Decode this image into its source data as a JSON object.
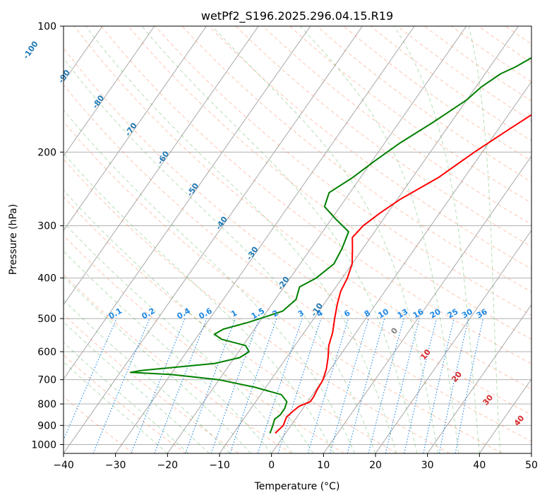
{
  "chart_data": {
    "type": "line",
    "title": "wetPf2_S196.2025.296.04.15.R19",
    "xlabel": "Temperature (°C)",
    "ylabel": "Pressure (hPa)",
    "xlim": [
      -40,
      50
    ],
    "ylim": [
      1050,
      100
    ],
    "y_scale": "log",
    "grid": true,
    "x_ticks": [
      -40,
      -30,
      -20,
      -10,
      0,
      10,
      20,
      30,
      40,
      50
    ],
    "y_ticks": [
      100,
      200,
      300,
      400,
      500,
      600,
      700,
      800,
      900,
      1000
    ],
    "isotherm_labels": [
      "-100",
      "-90",
      "-80",
      "-70",
      "-60",
      "-50",
      "-40",
      "-30",
      "-20",
      "-10"
    ],
    "mixing_ratio_labels": [
      "0.1",
      "0.2",
      "0.4",
      "0.6",
      "1",
      "1.5",
      "2",
      "3",
      "4",
      "6",
      "8",
      "10",
      "13",
      "16",
      "20",
      "25",
      "30",
      "36"
    ],
    "moist_adiabat_labels": [
      "0",
      "10",
      "20",
      "30",
      "40"
    ],
    "colors": {
      "temperature": "#ff0000",
      "dewpoint": "#008000",
      "isotherm_label": "#1f77b4",
      "mixing_ratio": "#1e88e5",
      "dry_adiabat": "#ff7f50",
      "moist_adiabat": "#2ca02c",
      "moist_label": "#d62728",
      "zero_label": "#808080"
    },
    "series": [
      {
        "name": "",
        "role": "temperature",
        "points": [
          {
            "p": 940,
            "t": -2.0
          },
          {
            "p": 900,
            "t": -1.5
          },
          {
            "p": 860,
            "t": -2.0
          },
          {
            "p": 830,
            "t": -1.5
          },
          {
            "p": 810,
            "t": -1.0
          },
          {
            "p": 790,
            "t": 0.5
          },
          {
            "p": 770,
            "t": 0.5
          },
          {
            "p": 740,
            "t": 0.2
          },
          {
            "p": 700,
            "t": 0.0
          },
          {
            "p": 660,
            "t": -0.8
          },
          {
            "p": 620,
            "t": -2.0
          },
          {
            "p": 580,
            "t": -3.5
          },
          {
            "p": 540,
            "t": -4.5
          },
          {
            "p": 500,
            "t": -6.0
          },
          {
            "p": 460,
            "t": -7.5
          },
          {
            "p": 430,
            "t": -8.5
          },
          {
            "p": 400,
            "t": -9.0
          },
          {
            "p": 370,
            "t": -10.0
          },
          {
            "p": 340,
            "t": -12.0
          },
          {
            "p": 320,
            "t": -13.5
          },
          {
            "p": 300,
            "t": -13.0
          },
          {
            "p": 280,
            "t": -11.5
          },
          {
            "p": 260,
            "t": -9.5
          },
          {
            "p": 230,
            "t": -5.0
          },
          {
            "p": 200,
            "t": -1.5
          },
          {
            "p": 180,
            "t": 1.5
          },
          {
            "p": 160,
            "t": 5.0
          },
          {
            "p": 145,
            "t": 9.0
          },
          {
            "p": 130,
            "t": 13.0
          },
          {
            "p": 120,
            "t": 14.5
          },
          {
            "p": 110,
            "t": 16.0
          },
          {
            "p": 100,
            "t": 19.5
          }
        ]
      },
      {
        "name": "",
        "role": "dewpoint",
        "points": [
          {
            "p": 940,
            "t": -3.0
          },
          {
            "p": 900,
            "t": -3.5
          },
          {
            "p": 870,
            "t": -4.0
          },
          {
            "p": 850,
            "t": -3.5
          },
          {
            "p": 820,
            "t": -3.5
          },
          {
            "p": 790,
            "t": -4.0
          },
          {
            "p": 760,
            "t": -6.0
          },
          {
            "p": 730,
            "t": -12.0
          },
          {
            "p": 700,
            "t": -20.0
          },
          {
            "p": 680,
            "t": -30.0
          },
          {
            "p": 672,
            "t": -38.0
          },
          {
            "p": 665,
            "t": -36.0
          },
          {
            "p": 640,
            "t": -23.0
          },
          {
            "p": 620,
            "t": -19.0
          },
          {
            "p": 600,
            "t": -18.0
          },
          {
            "p": 580,
            "t": -19.5
          },
          {
            "p": 560,
            "t": -25.0
          },
          {
            "p": 545,
            "t": -27.0
          },
          {
            "p": 530,
            "t": -26.0
          },
          {
            "p": 510,
            "t": -22.0
          },
          {
            "p": 480,
            "t": -17.0
          },
          {
            "p": 450,
            "t": -16.0
          },
          {
            "p": 420,
            "t": -17.0
          },
          {
            "p": 400,
            "t": -15.0
          },
          {
            "p": 370,
            "t": -13.5
          },
          {
            "p": 340,
            "t": -14.0
          },
          {
            "p": 310,
            "t": -15.0
          },
          {
            "p": 290,
            "t": -19.0
          },
          {
            "p": 270,
            "t": -23.0
          },
          {
            "p": 250,
            "t": -24.0
          },
          {
            "p": 230,
            "t": -21.5
          },
          {
            "p": 210,
            "t": -19.5
          },
          {
            "p": 190,
            "t": -17.0
          },
          {
            "p": 170,
            "t": -13.5
          },
          {
            "p": 150,
            "t": -10.0
          },
          {
            "p": 140,
            "t": -9.0
          },
          {
            "p": 130,
            "t": -7.0
          },
          {
            "p": 125,
            "t": -5.0
          },
          {
            "p": 115,
            "t": -2.0
          },
          {
            "p": 105,
            "t": 0.0
          },
          {
            "p": 100,
            "t": 1.0
          }
        ]
      }
    ]
  }
}
